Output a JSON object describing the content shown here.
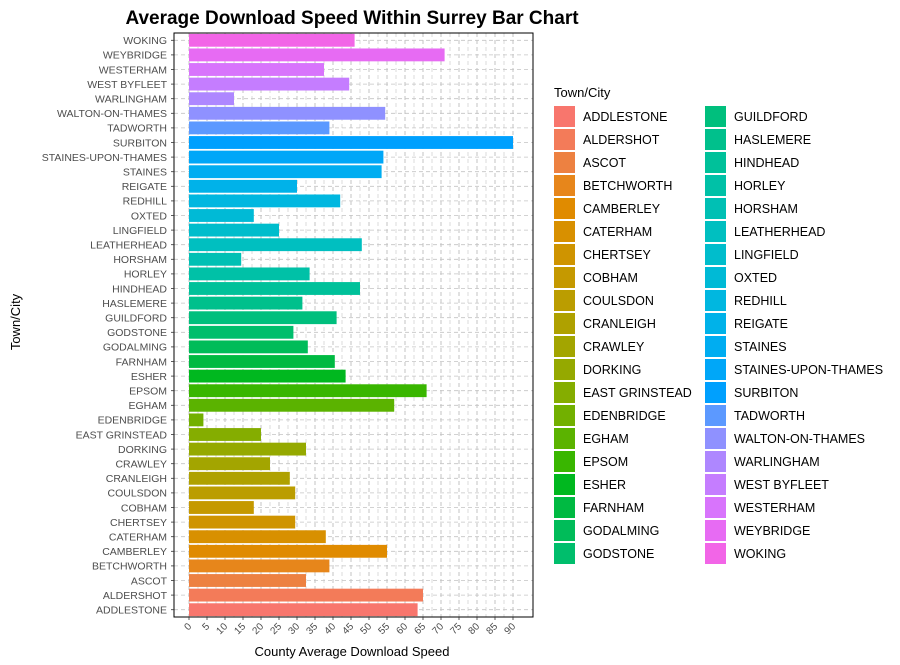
{
  "chart_data": {
    "type": "bar",
    "orientation": "horizontal",
    "title": "Average Download Speed Within Surrey Bar Chart",
    "xlabel": "County Average Download Speed",
    "ylabel": "Town/City",
    "xlim": [
      0,
      92
    ],
    "x_ticks": [
      "0",
      "5",
      "10",
      "15",
      "20",
      "25",
      "30",
      "35",
      "40",
      "45",
      "50",
      "55",
      "60",
      "65",
      "70",
      "75",
      "80",
      "85",
      "90"
    ],
    "grid": "dashed",
    "legend_title": "Town/City",
    "legend_position": "right",
    "categories": [
      "ADDLESTONE",
      "ALDERSHOT",
      "ASCOT",
      "BETCHWORTH",
      "CAMBERLEY",
      "CATERHAM",
      "CHERTSEY",
      "COBHAM",
      "COULSDON",
      "CRANLEIGH",
      "CRAWLEY",
      "DORKING",
      "EAST GRINSTEAD",
      "EDENBRIDGE",
      "EGHAM",
      "EPSOM",
      "ESHER",
      "FARNHAM",
      "GODALMING",
      "GODSTONE",
      "GUILDFORD",
      "HASLEMERE",
      "HINDHEAD",
      "HORLEY",
      "HORSHAM",
      "LEATHERHEAD",
      "LINGFIELD",
      "OXTED",
      "REDHILL",
      "REIGATE",
      "STAINES",
      "STAINES-UPON-THAMES",
      "SURBITON",
      "TADWORTH",
      "WALTON-ON-THAMES",
      "WARLINGHAM",
      "WEST BYFLEET",
      "WESTERHAM",
      "WEYBRIDGE",
      "WOKING"
    ],
    "values": [
      63.5,
      65,
      32.5,
      39,
      55,
      38,
      29.5,
      18,
      29.5,
      28,
      22.5,
      32.5,
      20,
      4,
      57,
      66,
      43.5,
      40.5,
      33,
      29,
      41,
      31.5,
      47.5,
      33.5,
      14.5,
      48,
      25,
      18,
      42,
      30,
      53.5,
      54,
      90,
      39,
      54.5,
      12.5,
      44.5,
      37.5,
      71,
      46
    ],
    "colors": [
      "#F8766D",
      "#F37B59",
      "#ED8141",
      "#E7861B",
      "#E08B00",
      "#D89000",
      "#CF9400",
      "#C59900",
      "#BB9D00",
      "#AFA100",
      "#A3A500",
      "#95A900",
      "#85AD00",
      "#72B000",
      "#5BB300",
      "#39B600",
      "#00B81F",
      "#00BA42",
      "#00BC59",
      "#00BE6C",
      "#00BF7D",
      "#00C08C",
      "#00C19A",
      "#00C1A7",
      "#00C0B4",
      "#00BFC0",
      "#00BDCC",
      "#00BAD6",
      "#00B7E0",
      "#00B2E9",
      "#00ADF1",
      "#00A7F8",
      "#00A0FE",
      "#5C99FF",
      "#8F91FF",
      "#AE87FF",
      "#C57DFF",
      "#D874FC",
      "#E76BF3",
      "#F265E7"
    ],
    "legend_column_1": [
      "ADDLESTONE",
      "ALDERSHOT",
      "ASCOT",
      "BETCHWORTH",
      "CAMBERLEY",
      "CATERHAM",
      "CHERTSEY",
      "COBHAM",
      "COULSDON",
      "CRANLEIGH",
      "CRAWLEY",
      "DORKING",
      "EAST GRINSTEAD",
      "EDENBRIDGE",
      "EGHAM",
      "EPSOM",
      "ESHER",
      "FARNHAM",
      "GODALMING",
      "GODSTONE"
    ],
    "legend_column_2": [
      "GUILDFORD",
      "HASLEMERE",
      "HINDHEAD",
      "HORLEY",
      "HORSHAM",
      "LEATHERHEAD",
      "LINGFIELD",
      "OXTED",
      "REDHILL",
      "REIGATE",
      "STAINES",
      "STAINES-UPON-THAMES",
      "SURBITON",
      "TADWORTH",
      "WALTON-ON-THAMES",
      "WARLINGHAM",
      "WEST BYFLEET",
      "WESTERHAM",
      "WEYBRIDGE",
      "WOKING"
    ]
  }
}
